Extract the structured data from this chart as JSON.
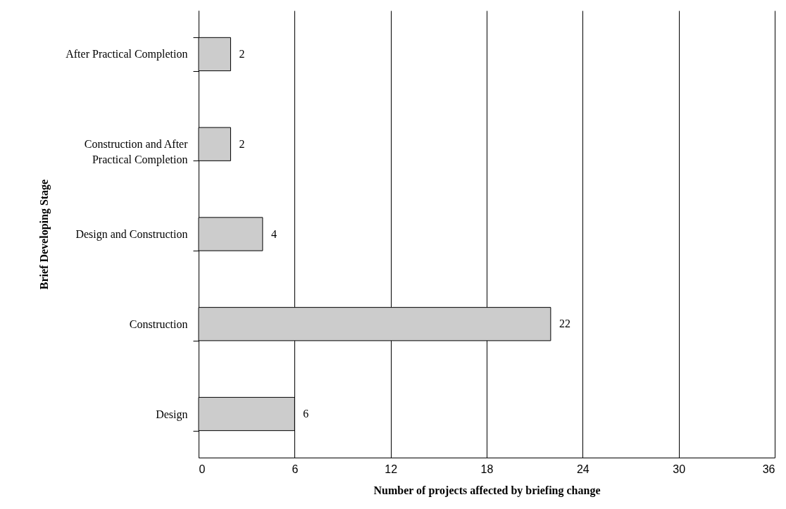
{
  "chart_data": {
    "type": "bar",
    "orientation": "horizontal",
    "xlabel": "Number of projects affected by briefing change",
    "ylabel": "Brief Developing Stage",
    "categories": [
      "After Practical Completion",
      "Construction and After Practical Completion",
      "Design and Construction",
      "Construction",
      "Design"
    ],
    "values": [
      2,
      2,
      4,
      22,
      6
    ],
    "color": "#cccccc",
    "xlim": [
      0,
      36
    ],
    "xticks": [
      0,
      6,
      12,
      18,
      24,
      30,
      36
    ],
    "grid": "x",
    "data_labels": true
  }
}
